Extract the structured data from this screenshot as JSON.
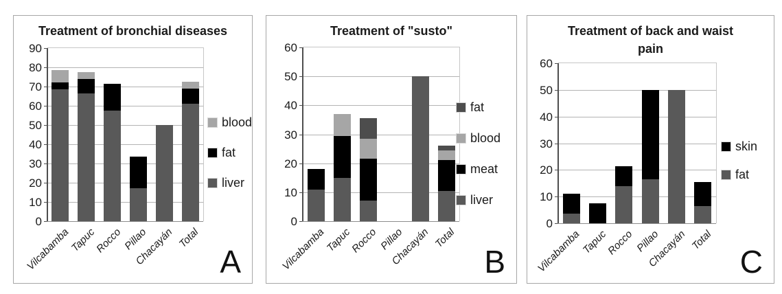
{
  "figure": {
    "background": "#ffffff",
    "description": "Three stacked bar charts comparing animal-part remedies used in five villages and overall total"
  },
  "chart_data": [
    {
      "type": "bar",
      "stacked": true,
      "letter": "A",
      "title": "Treatment of bronchial diseases",
      "categories": [
        "Vilcabamba",
        "Tapuc",
        "Rocco",
        "Pillao",
        "Chacayán",
        "Total"
      ],
      "series": [
        {
          "name": "liver",
          "color": "#595959",
          "values": [
            68.5,
            66.5,
            57.5,
            17,
            50,
            61
          ]
        },
        {
          "name": "fat",
          "color": "#000000",
          "values": [
            3.5,
            7.5,
            14,
            16.5,
            0,
            8
          ]
        },
        {
          "name": "blood",
          "color": "#a6a6a6",
          "values": [
            6.5,
            3.5,
            0,
            0,
            0,
            3.5
          ]
        }
      ],
      "legend": {
        "position": "right",
        "order": [
          "blood",
          "fat",
          "liver"
        ]
      },
      "ylim": [
        0,
        90
      ],
      "ytick_step": 10,
      "yticks": [
        0,
        10,
        20,
        30,
        40,
        50,
        60,
        70,
        80,
        90
      ],
      "xlabel": "",
      "ylabel": "",
      "grid": true
    },
    {
      "type": "bar",
      "stacked": true,
      "letter": "B",
      "title": "Treatment of \"susto\"",
      "categories": [
        "Vilcabamba",
        "Tapuc",
        "Rocco",
        "Pillao",
        "Chacayán",
        "Total"
      ],
      "series": [
        {
          "name": "liver",
          "color": "#595959",
          "values": [
            11,
            15,
            7,
            0,
            50,
            10.5
          ]
        },
        {
          "name": "meat",
          "color": "#000000",
          "values": [
            7,
            14.5,
            14.5,
            0,
            0,
            10.5
          ]
        },
        {
          "name": "blood",
          "color": "#a6a6a6",
          "values": [
            0,
            7.5,
            7,
            0,
            0,
            3.5
          ]
        },
        {
          "name": "fat",
          "color": "#4d4d4d",
          "values": [
            0,
            0,
            7,
            0,
            0,
            1.5
          ]
        }
      ],
      "legend": {
        "position": "right",
        "order": [
          "fat",
          "blood",
          "meat",
          "liver"
        ]
      },
      "ylim": [
        0,
        60
      ],
      "ytick_step": 10,
      "yticks": [
        0,
        10,
        20,
        30,
        40,
        50,
        60
      ],
      "xlabel": "",
      "ylabel": "",
      "grid": true
    },
    {
      "type": "bar",
      "stacked": true,
      "letter": "C",
      "title": "Treatment of back and waist pain",
      "categories": [
        "Vilcabamba",
        "Tapuc",
        "Rocco",
        "Pillao",
        "Chacayán",
        "Total"
      ],
      "series": [
        {
          "name": "fat",
          "color": "#595959",
          "values": [
            3.5,
            0,
            14,
            16.5,
            50,
            6.5
          ]
        },
        {
          "name": "skin",
          "color": "#000000",
          "values": [
            7.5,
            7.5,
            7.5,
            33.5,
            0,
            9
          ]
        }
      ],
      "legend": {
        "position": "right",
        "order": [
          "skin",
          "fat"
        ]
      },
      "ylim": [
        0,
        60
      ],
      "ytick_step": 10,
      "yticks": [
        0,
        10,
        20,
        30,
        40,
        50,
        60
      ],
      "xlabel": "",
      "ylabel": "",
      "grid": true
    }
  ]
}
